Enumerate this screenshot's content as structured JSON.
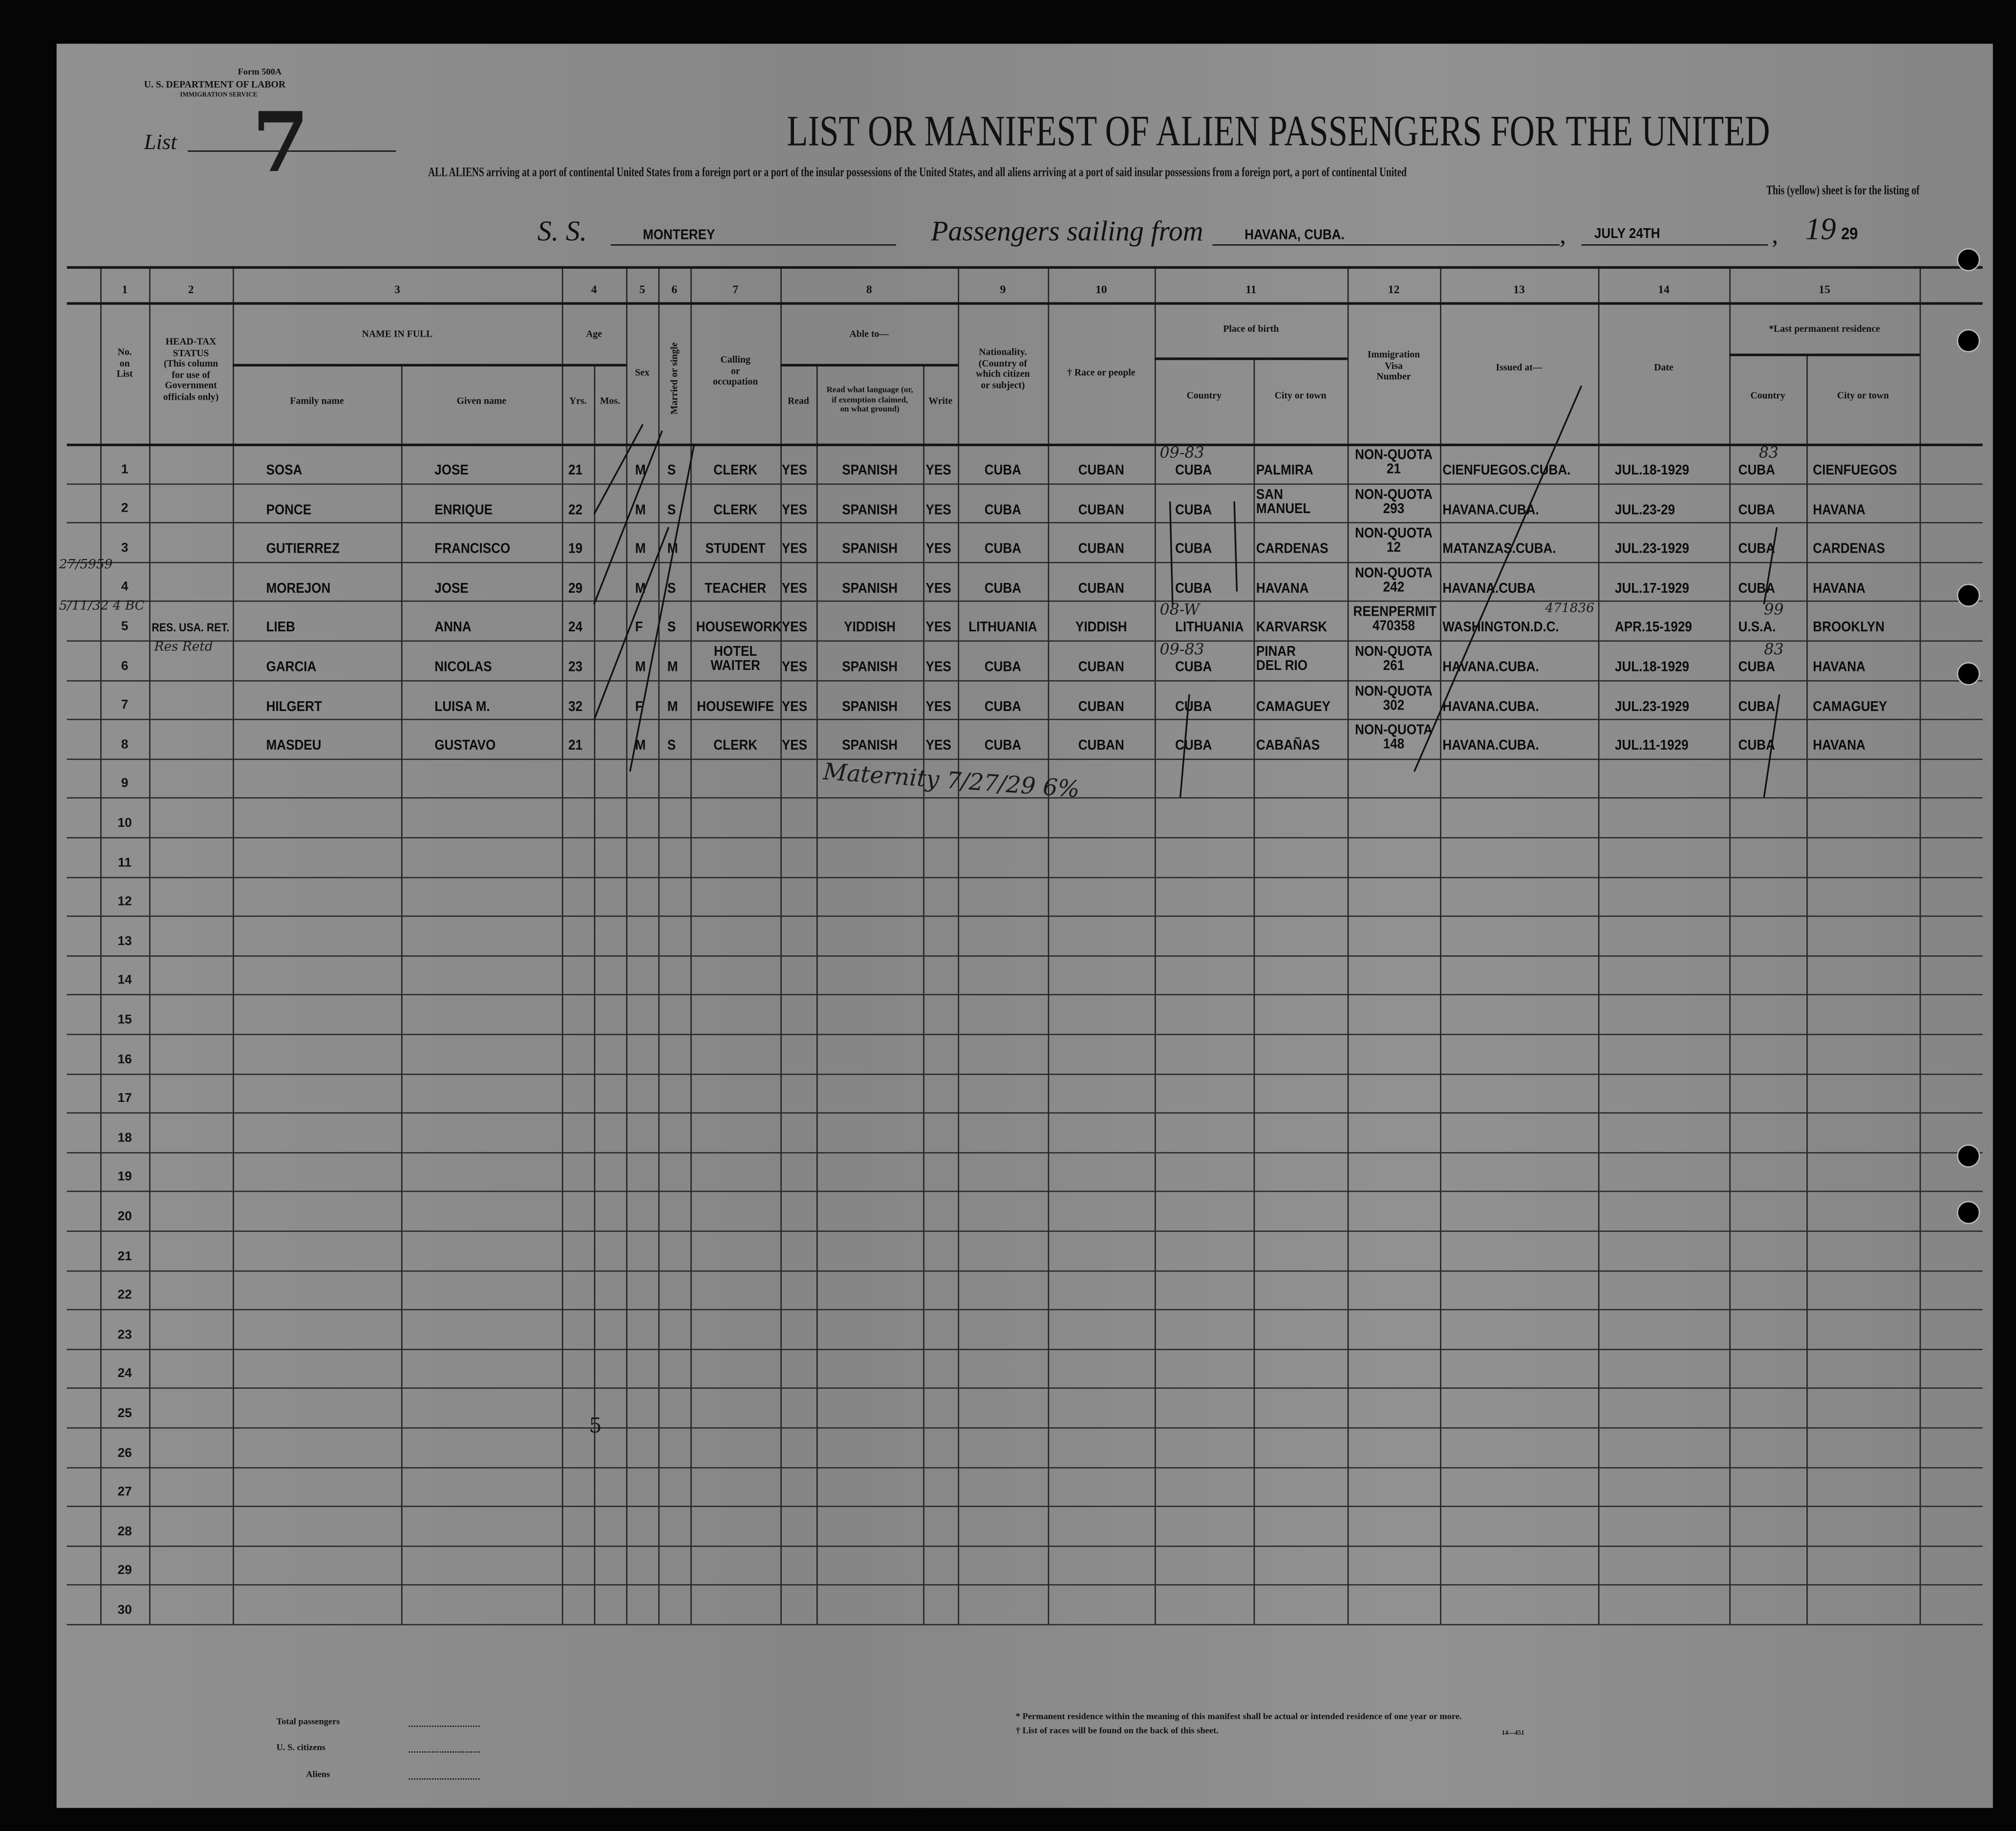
{
  "form": {
    "form_number": "Form 500A",
    "department": "U. S. DEPARTMENT OF LABOR",
    "service": "IMMIGRATION SERVICE",
    "list_label": "List",
    "list_number": "7"
  },
  "title": "LIST OR MANIFEST OF ALIEN PASSENGERS FOR THE UNITED",
  "subtitle": "ALL ALIENS arriving at a port of continental United States from a foreign port or a port of the insular possessions of the United States, and all aliens arriving at a port of said insular possessions from a foreign port, a port of continental United",
  "subtitle2": "This (yellow) sheet is for the listing of",
  "voyage": {
    "ss_label": "S. S.",
    "ship_name": "MONTEREY",
    "sailing_label": "Passengers sailing from",
    "port": "HAVANA, CUBA.",
    "date": "JULY 24TH",
    "year_prefix": "19",
    "year_suffix": "29"
  },
  "column_numbers": [
    "1",
    "2",
    "3",
    "4",
    "5",
    "6",
    "7",
    "8",
    "9",
    "10",
    "11",
    "12",
    "13",
    "14",
    "15"
  ],
  "headers": {
    "no": "No.\non\nList",
    "head_tax": "HEAD-TAX\nSTATUS\n(This column\nfor use of\nGovernment\nofficials only)",
    "name_in_full": "NAME IN FULL",
    "family_name": "Family name",
    "given_name": "Given name",
    "age": "Age",
    "yrs": "Yrs.",
    "mos": "Mos.",
    "sex": "Sex",
    "married": "Married or single",
    "calling": "Calling\nor\noccupation",
    "able_to": "Able to—",
    "read": "Read",
    "read_language": "Read what language (or,\nif exemption claimed,\non what ground)",
    "write": "Write",
    "nationality": "Nationality.\n(Country of\nwhich citizen\nor subject)",
    "race": "† Race or people",
    "place_of_birth": "Place of birth",
    "birth_country": "Country",
    "birth_city": "City or town",
    "visa": "Immigration\nVisa\nNumber",
    "issued_at": "Issued at—",
    "date": "Date",
    "last_residence": "*Last permanent residence",
    "res_country": "Country",
    "res_city": "City or town"
  },
  "row_numbers": [
    "1",
    "2",
    "3",
    "4",
    "5",
    "6",
    "7",
    "8",
    "9",
    "10",
    "11",
    "12",
    "13",
    "14",
    "15",
    "16",
    "17",
    "18",
    "19",
    "20",
    "21",
    "22",
    "23",
    "24",
    "25",
    "26",
    "27",
    "28",
    "29",
    "30"
  ],
  "passengers": [
    {
      "head_tax": "",
      "family": "SOSA",
      "given": "JOSE",
      "yrs": "21",
      "sex": "M",
      "married": "S",
      "calling": "CLERK",
      "read": "YES",
      "language": "SPANISH",
      "write": "YES",
      "nationality": "CUBA",
      "race": "CUBAN",
      "birth_country": "CUBA",
      "birth_city": "PALMIRA",
      "visa": "NON-QUOTA\n21",
      "issued_at": "CIENFUEGOS.CUBA.",
      "date": "JUL.18-1929",
      "res_country": "CUBA",
      "res_city": "CIENFUEGOS"
    },
    {
      "head_tax": "",
      "family": "PONCE",
      "given": "ENRIQUE",
      "yrs": "22",
      "sex": "M",
      "married": "S",
      "calling": "CLERK",
      "read": "YES",
      "language": "SPANISH",
      "write": "YES",
      "nationality": "CUBA",
      "race": "CUBAN",
      "birth_country": "CUBA",
      "birth_city": "SAN\nMANUEL",
      "visa": "NON-QUOTA\n293",
      "issued_at": "HAVANA.CUBA.",
      "date": "JUL.23-29",
      "res_country": "CUBA",
      "res_city": "HAVANA"
    },
    {
      "head_tax": "",
      "family": "GUTIERREZ",
      "given": "FRANCISCO",
      "yrs": "19",
      "sex": "M",
      "married": "M",
      "calling": "STUDENT",
      "read": "YES",
      "language": "SPANISH",
      "write": "YES",
      "nationality": "CUBA",
      "race": "CUBAN",
      "birth_country": "CUBA",
      "birth_city": "CARDENAS",
      "visa": "NON-QUOTA\n12",
      "issued_at": "MATANZAS.CUBA.",
      "date": "JUL.23-1929",
      "res_country": "CUBA",
      "res_city": "CARDENAS"
    },
    {
      "head_tax": "",
      "family": "MOREJON",
      "given": "JOSE",
      "yrs": "29",
      "sex": "M",
      "married": "S",
      "calling": "TEACHER",
      "read": "YES",
      "language": "SPANISH",
      "write": "YES",
      "nationality": "CUBA",
      "race": "CUBAN",
      "birth_country": "CUBA",
      "birth_city": "HAVANA",
      "visa": "NON-QUOTA\n242",
      "issued_at": "HAVANA.CUBA",
      "date": "JUL.17-1929",
      "res_country": "CUBA",
      "res_city": "HAVANA"
    },
    {
      "head_tax": "RES. USA. RET.",
      "family": "LIEB",
      "given": "ANNA",
      "yrs": "24",
      "sex": "F",
      "married": "S",
      "calling": "HOUSEWORK",
      "read": "YES",
      "language": "YIDDISH",
      "write": "YES",
      "nationality": "LITHUANIA",
      "race": "YIDDISH",
      "birth_country": "LITHUANIA",
      "birth_city": "KARVARSK",
      "visa": "REENPERMIT\n470358",
      "issued_at": "WASHINGTON.D.C.",
      "date": "APR.15-1929",
      "res_country": "U.S.A.",
      "res_city": "BROOKLYN"
    },
    {
      "head_tax": "",
      "family": "GARCIA",
      "given": "NICOLAS",
      "yrs": "23",
      "sex": "M",
      "married": "M",
      "calling": "HOTEL\nWAITER",
      "read": "YES",
      "language": "SPANISH",
      "write": "YES",
      "nationality": "CUBA",
      "race": "CUBAN",
      "birth_country": "CUBA",
      "birth_city": "PINAR\nDEL RIO",
      "visa": "NON-QUOTA\n261",
      "issued_at": "HAVANA.CUBA.",
      "date": "JUL.18-1929",
      "res_country": "CUBA",
      "res_city": "HAVANA"
    },
    {
      "head_tax": "",
      "family": "HILGERT",
      "given": "LUISA M.",
      "yrs": "32",
      "sex": "F",
      "married": "M",
      "calling": "HOUSEWIFE",
      "read": "YES",
      "language": "SPANISH",
      "write": "YES",
      "nationality": "CUBA",
      "race": "CUBAN",
      "birth_country": "CUBA",
      "birth_city": "CAMAGUEY",
      "visa": "NON-QUOTA\n302",
      "issued_at": "HAVANA.CUBA.",
      "date": "JUL.23-1929",
      "res_country": "CUBA",
      "res_city": "CAMAGUEY"
    },
    {
      "head_tax": "",
      "family": "MASDEU",
      "given": "GUSTAVO",
      "yrs": "21",
      "sex": "M",
      "married": "S",
      "calling": "CLERK",
      "read": "YES",
      "language": "SPANISH",
      "write": "YES",
      "nationality": "CUBA",
      "race": "CUBAN",
      "birth_country": "CUBA",
      "birth_city": "CABAÑAS",
      "visa": "NON-QUOTA\n148",
      "issued_at": "HAVANA.CUBA.",
      "date": "JUL.11-1929",
      "res_country": "CUBA",
      "res_city": "HAVANA"
    }
  ],
  "handwritten": {
    "birth_code_1": "09-83",
    "birth_code_5": "08-W",
    "birth_code_6": "09-83",
    "res_code_1": "83",
    "res_code_5": "99",
    "res_code_6": "83",
    "margin_note_1": "27/5959",
    "margin_note_2": "5/11/32 4 BC",
    "head_tax_note": "Res Retd",
    "permit_note": "471836",
    "maternity_note": "Maternity 7/27/29 6%",
    "page_count": "5"
  },
  "footer": {
    "total_passengers": "Total passengers",
    "us_citizens": "U. S. citizens",
    "aliens": "Aliens",
    "note_residence": "* Permanent residence within the meaning of this manifest shall be actual or intended residence of one year or more.",
    "note_races": "† List of races will be found on the back of this sheet.",
    "form_code": "14—451"
  }
}
